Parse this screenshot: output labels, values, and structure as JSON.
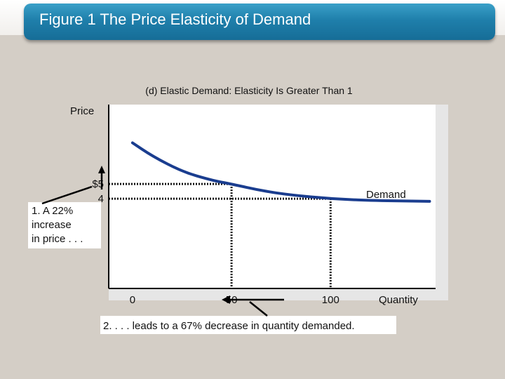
{
  "title": "Figure 1 The Price Elasticity of Demand",
  "chart_data": {
    "type": "line",
    "subtitle": "(d) Elastic Demand: Elasticity Is Greater Than 1",
    "ylabel": "Price",
    "xlabel": "Quantity",
    "series": [
      {
        "name": "Demand",
        "points": [
          [
            0,
            7.8
          ],
          [
            10,
            6.9
          ],
          [
            25,
            5.85
          ],
          [
            40,
            5.25
          ],
          [
            50,
            5
          ],
          [
            65,
            4.55
          ],
          [
            80,
            4.25
          ],
          [
            100,
            4
          ],
          [
            120,
            3.88
          ],
          [
            150,
            3.82
          ]
        ]
      }
    ],
    "points_of_interest": [
      {
        "x": 50,
        "y": 5
      },
      {
        "x": 100,
        "y": 4
      }
    ],
    "x_ticks": [
      {
        "value": 0,
        "label": "0"
      },
      {
        "value": 50,
        "label": "50"
      },
      {
        "value": 100,
        "label": "100"
      }
    ],
    "y_ticks": [
      {
        "value": 5,
        "label": "$5"
      },
      {
        "value": 4,
        "label": "4"
      }
    ],
    "xlim": [
      -12,
      153
    ],
    "ylim": [
      -2.1,
      10.4
    ],
    "annotations": {
      "price_change": "1. A 22% increase in price . . .",
      "quantity_change": "2. . . . leads to a 67% decrease in quantity demanded."
    },
    "colors": {
      "demand_curve": "#1a3d8f",
      "title_bar": "#1f7fab",
      "plot_bg": "#ffffff",
      "page_bg": "#d4cec6"
    }
  }
}
